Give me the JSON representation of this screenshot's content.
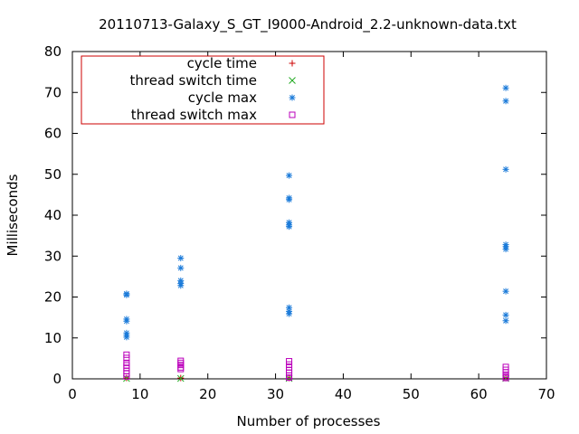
{
  "chart_data": {
    "type": "scatter",
    "title": "20110713-Galaxy_S_GT_I9000-Android_2.2-unknown-data.txt",
    "xlabel": "Number of processes",
    "ylabel": "Milliseconds",
    "xlim": [
      0,
      70
    ],
    "ylim": [
      0,
      80
    ],
    "xticks": [
      0,
      10,
      20,
      30,
      40,
      50,
      60,
      70
    ],
    "yticks": [
      0,
      10,
      20,
      30,
      40,
      50,
      60,
      70,
      80
    ],
    "grid": false,
    "legend_position": "top-left",
    "series": [
      {
        "name": "cycle time",
        "marker": "plus",
        "color": "#cc0000",
        "points": [
          [
            8,
            0.2
          ],
          [
            16,
            0.2
          ],
          [
            32,
            0.2
          ],
          [
            64,
            0.2
          ]
        ]
      },
      {
        "name": "thread switch time",
        "marker": "cross",
        "color": "#22aa22",
        "points": [
          [
            8,
            0.1
          ],
          [
            16,
            0.1
          ],
          [
            32,
            0.1
          ],
          [
            64,
            0.1
          ]
        ]
      },
      {
        "name": "cycle max",
        "marker": "star",
        "color": "#1a7ad9",
        "points": [
          [
            8,
            20.8
          ],
          [
            8,
            20.5
          ],
          [
            8,
            14.6
          ],
          [
            8,
            14.1
          ],
          [
            8,
            11.2
          ],
          [
            8,
            10.7
          ],
          [
            8,
            10.2
          ],
          [
            16,
            29.5
          ],
          [
            16,
            27.1
          ],
          [
            16,
            24.0
          ],
          [
            16,
            23.3
          ],
          [
            16,
            22.8
          ],
          [
            32,
            49.7
          ],
          [
            32,
            44.2
          ],
          [
            32,
            43.8
          ],
          [
            32,
            38.2
          ],
          [
            32,
            37.6
          ],
          [
            32,
            37.2
          ],
          [
            32,
            17.4
          ],
          [
            32,
            16.5
          ],
          [
            32,
            15.9
          ],
          [
            64,
            71.1
          ],
          [
            64,
            67.9
          ],
          [
            64,
            51.2
          ],
          [
            64,
            32.8
          ],
          [
            64,
            32.3
          ],
          [
            64,
            31.7
          ],
          [
            64,
            21.4
          ],
          [
            64,
            15.6
          ],
          [
            64,
            14.2
          ]
        ]
      },
      {
        "name": "thread switch max",
        "marker": "square",
        "color": "#bb00bb",
        "points": [
          [
            8,
            5.9
          ],
          [
            8,
            5.1
          ],
          [
            8,
            3.9
          ],
          [
            8,
            3.3
          ],
          [
            8,
            2.7
          ],
          [
            8,
            1.9
          ],
          [
            8,
            1.3
          ],
          [
            8,
            0.6
          ],
          [
            16,
            4.4
          ],
          [
            16,
            3.9
          ],
          [
            16,
            3.4
          ],
          [
            16,
            2.8
          ],
          [
            16,
            2.4
          ],
          [
            32,
            4.3
          ],
          [
            32,
            3.5
          ],
          [
            32,
            2.8
          ],
          [
            32,
            2.1
          ],
          [
            32,
            1.5
          ],
          [
            32,
            0.8
          ],
          [
            32,
            0.3
          ],
          [
            64,
            2.9
          ],
          [
            64,
            2.2
          ],
          [
            64,
            1.6
          ],
          [
            64,
            1.0
          ],
          [
            64,
            0.5
          ],
          [
            64,
            0.2
          ]
        ]
      }
    ]
  }
}
